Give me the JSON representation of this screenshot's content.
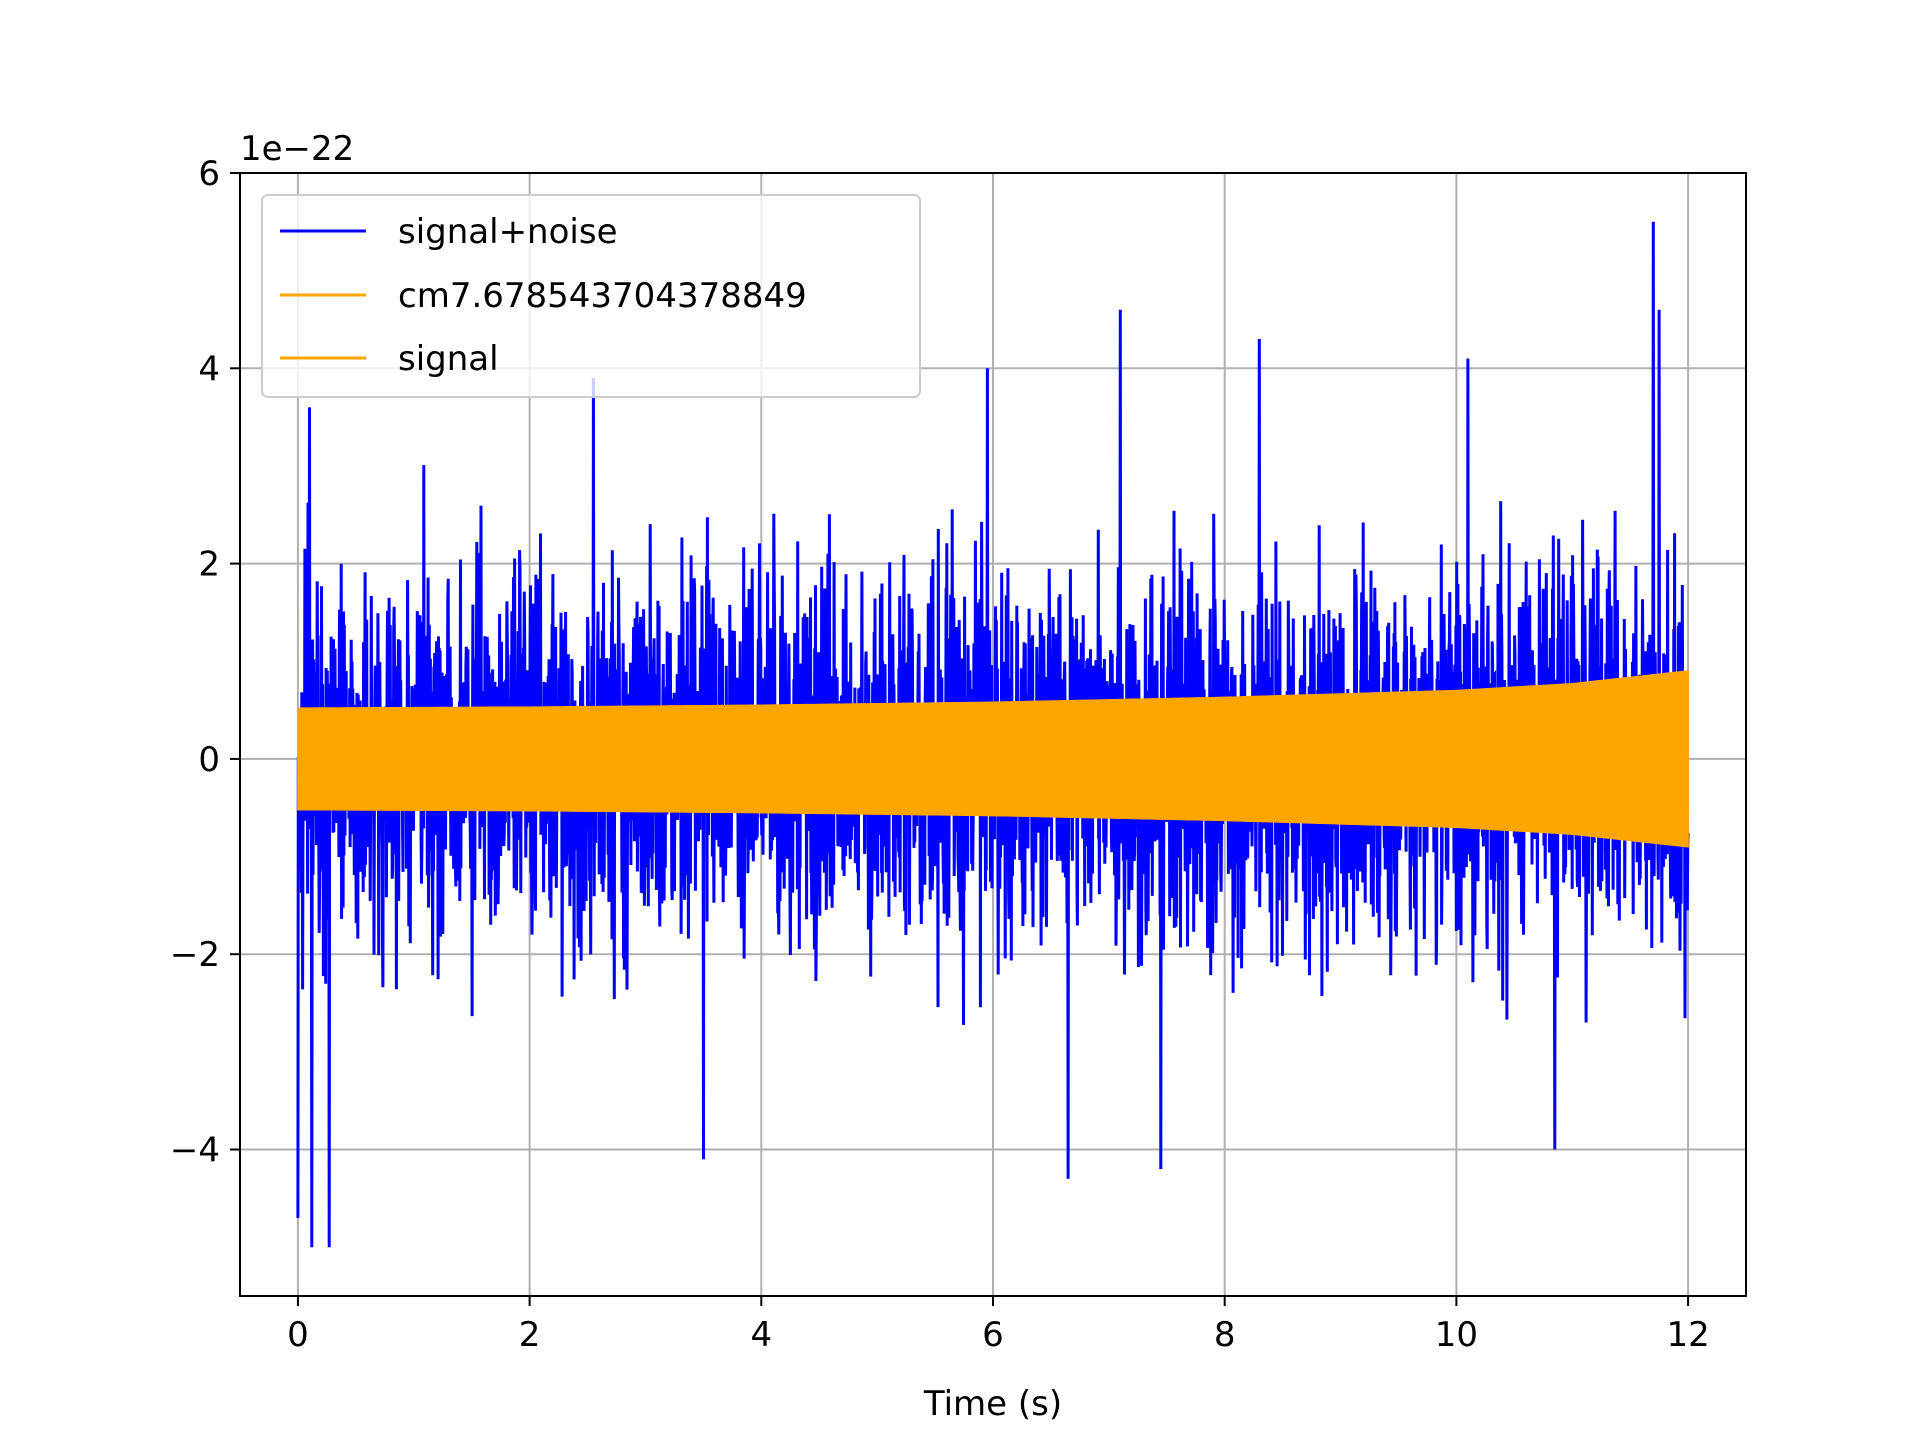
{
  "chart_data": {
    "type": "line",
    "title": "",
    "xlabel": "Time (s)",
    "ylabel": "",
    "y_offset_label": "1e−22",
    "y_scale_factor": 1e-22,
    "xlim": [
      -0.5,
      12.5
    ],
    "ylim": [
      -5.5,
      6.0
    ],
    "x_ticks": [
      0,
      2,
      4,
      6,
      8,
      10,
      12
    ],
    "x_tick_labels": [
      "0",
      "2",
      "4",
      "6",
      "8",
      "10",
      "12"
    ],
    "y_ticks": [
      -4,
      -2,
      0,
      2,
      4,
      6
    ],
    "y_tick_labels": [
      "−4",
      "−2",
      "0",
      "2",
      "4",
      "6"
    ],
    "grid": true,
    "legend_position": "top-left",
    "legend": [
      {
        "label": "signal+noise",
        "color": "#0000ff"
      },
      {
        "label": "cm7.678543704378849",
        "color": "#ffa500"
      },
      {
        "label": "signal",
        "color": "#ffa500"
      }
    ],
    "series": [
      {
        "name": "signal+noise",
        "color": "#0000ff",
        "description_of_shape": "dense noise band",
        "x_range": [
          0,
          12
        ],
        "typical_envelope": [
          -2.3,
          2.3
        ],
        "peak_events": [
          {
            "x": 0.0,
            "y": -4.7
          },
          {
            "x": 0.1,
            "y": 3.6
          },
          {
            "x": 0.12,
            "y": -5.0
          },
          {
            "x": 0.27,
            "y": -5.0
          },
          {
            "x": 2.55,
            "y": 3.9
          },
          {
            "x": 3.5,
            "y": -4.1
          },
          {
            "x": 5.95,
            "y": 4.0
          },
          {
            "x": 6.65,
            "y": -4.3
          },
          {
            "x": 7.1,
            "y": 4.6
          },
          {
            "x": 7.45,
            "y": -4.2
          },
          {
            "x": 8.3,
            "y": 4.3
          },
          {
            "x": 10.1,
            "y": 4.1
          },
          {
            "x": 10.85,
            "y": -4.0
          },
          {
            "x": 11.7,
            "y": 5.5
          },
          {
            "x": 11.75,
            "y": 4.6
          }
        ]
      },
      {
        "name": "signal",
        "color": "#ffa500",
        "description_of_shape": "chirp band with growing amplitude",
        "x": [
          0,
          2,
          4,
          6,
          8,
          10,
          11,
          12
        ],
        "amplitude": [
          0.52,
          0.53,
          0.55,
          0.58,
          0.63,
          0.7,
          0.77,
          0.9
        ]
      }
    ]
  }
}
